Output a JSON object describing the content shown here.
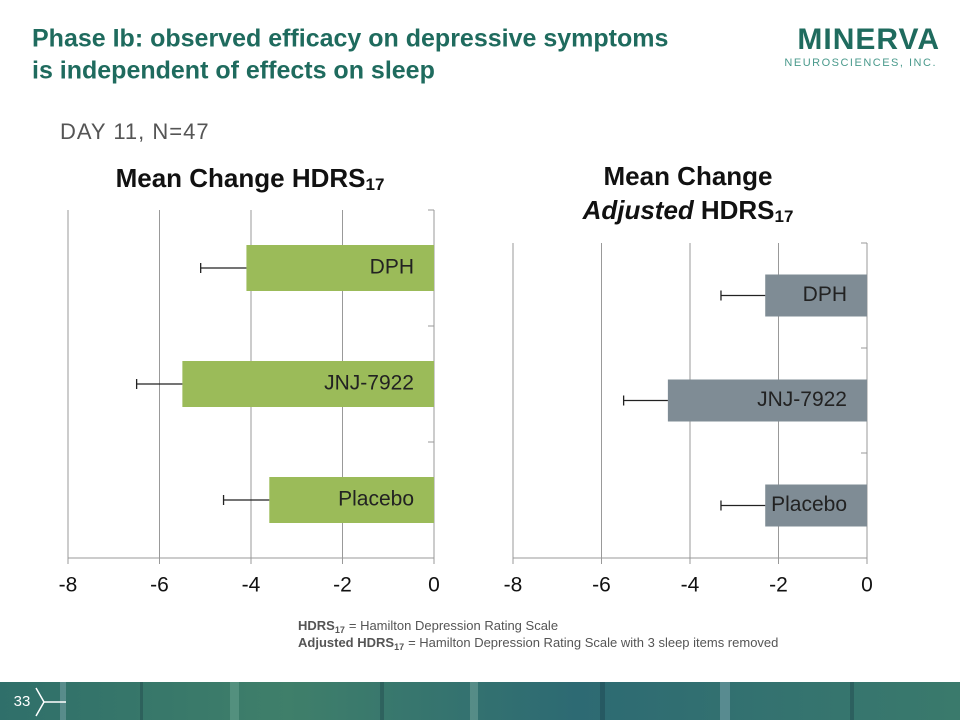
{
  "slide": {
    "title_line1": "Phase Ib: observed efficacy on depressive symptoms",
    "title_line2": "is independent of effects on sleep",
    "logo_name": "MINERVA",
    "logo_sub": "NEUROSCIENCES, INC.",
    "subtitle": "DAY 11, N=47",
    "footnotes": [
      {
        "term": "HDRS",
        "sub": "17",
        "definition": "= Hamilton Depression Rating Scale"
      },
      {
        "term": "Adjusted HDRS",
        "sub": "17",
        "definition": "= Hamilton Depression Rating Scale with 3 sleep items removed"
      }
    ],
    "page_number": "33"
  },
  "chart_data": [
    {
      "type": "hbar",
      "title": "Mean Change HDRS",
      "title_subscript": "17",
      "categories": [
        "DPH",
        "JNJ-7922",
        "Placebo"
      ],
      "values": [
        -4.1,
        -5.5,
        -3.6
      ],
      "errors": [
        1.0,
        1.0,
        1.0
      ],
      "color": "#9bbb59",
      "xlim": [
        -8,
        0
      ],
      "xticks": [
        -8,
        -6,
        -4,
        -2,
        0
      ],
      "grid": true
    },
    {
      "type": "hbar",
      "title": "Mean Change",
      "title_italic": "Adjusted",
      "title_line2": "HDRS",
      "title_subscript": "17",
      "categories": [
        "DPH",
        "JNJ-7922",
        "Placebo"
      ],
      "values": [
        -2.3,
        -4.5,
        -2.3
      ],
      "errors": [
        1.0,
        1.0,
        1.0
      ],
      "color": "#7f8c95",
      "xlim": [
        -8,
        0
      ],
      "xticks": [
        -8,
        -6,
        -4,
        -2,
        0
      ],
      "grid": true
    }
  ]
}
